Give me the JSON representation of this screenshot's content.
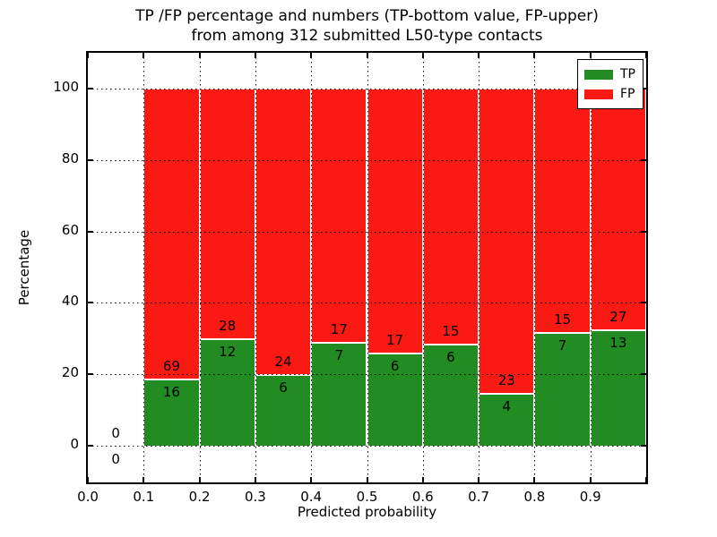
{
  "chart_data": {
    "type": "bar",
    "stacked": true,
    "title_line1": "TP /FP percentage and numbers (TP-bottom value, FP-upper)",
    "title_line2": "from among 312 submitted L50-type contacts",
    "xlabel": "Predicted probability",
    "ylabel": "Percentage",
    "x_tick_labels": [
      "0.0",
      "0.1",
      "0.2",
      "0.3",
      "0.4",
      "0.5",
      "0.6",
      "0.7",
      "0.8",
      "0.9"
    ],
    "y_tick_values": [
      0,
      20,
      40,
      60,
      80,
      100
    ],
    "xlim": [
      0.0,
      1.0
    ],
    "ylim": [
      -10,
      110
    ],
    "grid": "dotted",
    "legend_position": "upper-right",
    "total_contacts_shown_in_title": 312,
    "bin_width": 0.1,
    "bins": [
      {
        "x_start": 0.0,
        "tp": 0,
        "fp": 0
      },
      {
        "x_start": 0.1,
        "tp": 16,
        "fp": 69
      },
      {
        "x_start": 0.2,
        "tp": 12,
        "fp": 28
      },
      {
        "x_start": 0.3,
        "tp": 6,
        "fp": 24
      },
      {
        "x_start": 0.4,
        "tp": 7,
        "fp": 17
      },
      {
        "x_start": 0.5,
        "tp": 6,
        "fp": 17
      },
      {
        "x_start": 0.6,
        "tp": 6,
        "fp": 15
      },
      {
        "x_start": 0.7,
        "tp": 4,
        "fp": 23
      },
      {
        "x_start": 0.8,
        "tp": 7,
        "fp": 15
      },
      {
        "x_start": 0.9,
        "tp": 13,
        "fp": 27
      }
    ],
    "series": [
      {
        "name": "TP",
        "color": "#228b22"
      },
      {
        "name": "FP",
        "color": "#fa1a14"
      }
    ]
  }
}
